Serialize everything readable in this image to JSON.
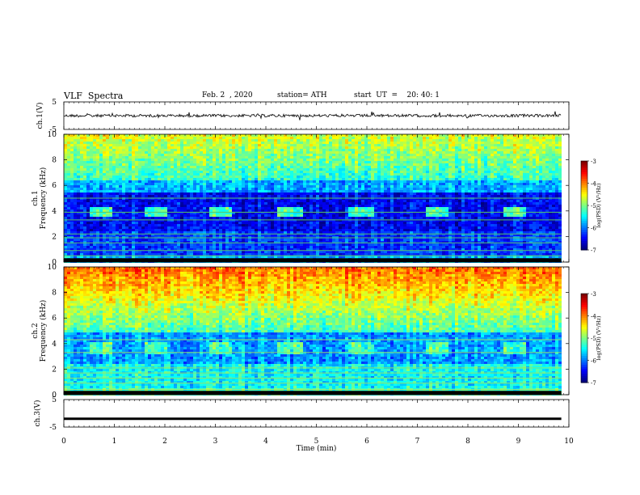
{
  "header": {
    "title": "VLF  Spectra",
    "date": "Feb. 2  , 2020",
    "station": "station= ATH",
    "start": "start  UT  =    20: 40: 1"
  },
  "chart_data": [
    {
      "type": "line",
      "ylabel": "ch.1(V)",
      "ylim": [
        -5,
        5
      ],
      "yticks": [
        "5",
        "-5"
      ],
      "series": [
        {
          "values": "noise trace around 0 V, ±1 V"
        }
      ]
    },
    {
      "type": "heatmap",
      "ylabel": "Frequency (kHz)",
      "channel_label": "ch.1",
      "ylim": [
        0,
        10
      ],
      "yticks": [
        "0",
        "2",
        "4",
        "6",
        "8",
        "10"
      ],
      "xlim": [
        0,
        10
      ],
      "data_end_min": 9.85,
      "bursts_min": [
        0.72,
        1.78,
        3.08,
        4.45,
        5.85,
        7.35,
        8.9
      ],
      "burst_freq_khz": 4.0,
      "colorbar": {
        "label": "log(PSD) (V²/Hz)",
        "ticks": [
          "-3",
          "-4",
          "-5",
          "-6",
          "-7"
        ],
        "range": [
          -7,
          -3
        ]
      }
    },
    {
      "type": "heatmap",
      "ylabel": "Frequency (kHz)",
      "channel_label": "ch.2",
      "ylim": [
        0,
        10
      ],
      "yticks": [
        "0",
        "2",
        "4",
        "6",
        "8",
        "10"
      ],
      "xlim": [
        0,
        10
      ],
      "data_end_min": 9.85,
      "bursts_min": [
        0.72,
        1.78,
        3.08,
        4.45,
        5.85,
        7.35,
        8.9
      ],
      "burst_freq_khz": 3.8,
      "colorbar": {
        "label": "log(PSD) (V²/Hz)",
        "ticks": [
          "-3",
          "-4",
          "-5",
          "-6",
          "-7"
        ],
        "range": [
          -7,
          -3
        ]
      }
    },
    {
      "type": "line",
      "ylabel": "ch.3(V)",
      "ylim": [
        -5,
        5
      ],
      "yticks": [
        "5",
        "-5"
      ],
      "series": [
        {
          "values": "flat thick trace at about -2 V"
        }
      ]
    }
  ],
  "xaxis": {
    "label": "Time  (min)",
    "ticks": [
      "0",
      "1",
      "2",
      "3",
      "4",
      "5",
      "6",
      "7",
      "8",
      "9",
      "10"
    ],
    "range": [
      0,
      10
    ]
  }
}
